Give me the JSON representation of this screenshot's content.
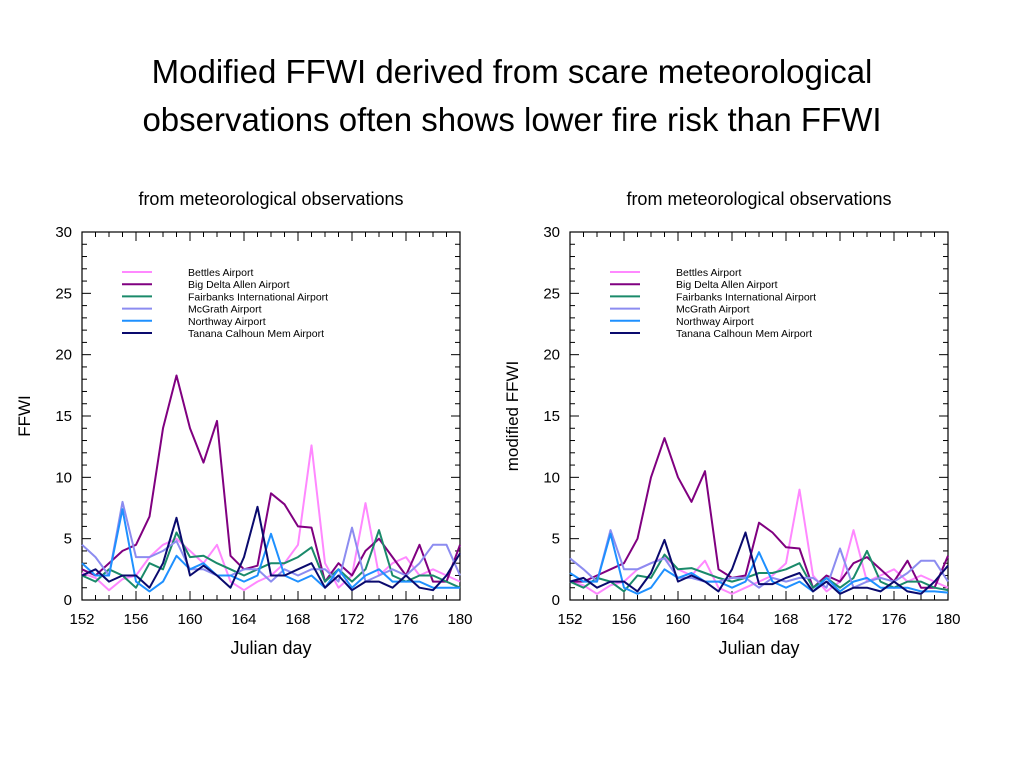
{
  "slide": {
    "title_line1": "Modified FFWI derived from scare meteorological",
    "title_line2": "observations often shows lower fire risk than FFWI"
  },
  "colors": {
    "Bettles Airport": "#ff88ff",
    "Big Delta Allen Airport": "#800080",
    "Fairbanks International Airport": "#1a8a6a",
    "McGrath Airport": "#8c8cf0",
    "Northway Airport": "#1e90ff",
    "Tanana Calhoun Mem Airport": "#0a0a6e"
  },
  "chart_data": [
    {
      "type": "line",
      "title": "from meteorological observations",
      "xlabel": "Julian day",
      "ylabel": "FFWI",
      "xlim": [
        152,
        180
      ],
      "ylim": [
        0,
        30
      ],
      "xticks": [
        152,
        156,
        160,
        164,
        168,
        172,
        176,
        180
      ],
      "yticks": [
        0,
        5,
        10,
        15,
        20,
        25,
        30
      ],
      "legend": "top-left",
      "grid": false,
      "x": [
        152,
        153,
        154,
        155,
        156,
        157,
        158,
        159,
        160,
        161,
        162,
        163,
        164,
        165,
        166,
        167,
        168,
        169,
        170,
        171,
        172,
        173,
        174,
        175,
        176,
        177,
        178,
        179,
        180
      ],
      "series": [
        {
          "name": "Bettles Airport",
          "values": [
            2.2,
            1.8,
            0.8,
            1.7,
            2.0,
            3.5,
            4.5,
            5.0,
            4.0,
            3.0,
            4.5,
            1.5,
            0.8,
            1.5,
            2.0,
            3.0,
            4.5,
            12.6,
            3.0,
            1.0,
            2.0,
            7.9,
            2.0,
            3.0,
            3.5,
            2.0,
            2.5,
            2.0,
            1.5
          ]
        },
        {
          "name": "Big Delta Allen Airport",
          "values": [
            2.5,
            2.0,
            3.0,
            4.0,
            4.5,
            6.8,
            14.0,
            18.3,
            14.0,
            11.2,
            14.6,
            3.6,
            2.5,
            2.8,
            8.7,
            7.8,
            6.0,
            5.9,
            1.5,
            3.0,
            2.0,
            4.0,
            5.0,
            3.5,
            2.0,
            4.5,
            1.5,
            1.5,
            4.5
          ]
        },
        {
          "name": "Fairbanks International Airport",
          "values": [
            2.0,
            1.5,
            2.5,
            2.0,
            1.0,
            3.0,
            2.5,
            5.5,
            3.5,
            3.6,
            3.0,
            2.5,
            2.0,
            2.5,
            3.0,
            3.0,
            3.5,
            4.3,
            1.5,
            2.5,
            1.5,
            2.5,
            5.7,
            2.0,
            1.5,
            2.0,
            2.0,
            1.5,
            1.0
          ]
        },
        {
          "name": "McGrath Airport",
          "values": [
            4.5,
            3.5,
            2.0,
            8.0,
            3.5,
            3.5,
            4.0,
            4.8,
            2.5,
            2.5,
            2.0,
            2.0,
            2.5,
            2.5,
            1.5,
            2.5,
            2.0,
            2.5,
            2.5,
            1.5,
            5.9,
            1.5,
            2.0,
            2.5,
            2.0,
            3.0,
            4.5,
            4.5,
            2.0
          ]
        },
        {
          "name": "Northway Airport",
          "values": [
            3.0,
            2.0,
            2.0,
            7.4,
            1.5,
            0.7,
            1.5,
            3.6,
            2.5,
            3.0,
            2.0,
            2.0,
            1.5,
            2.0,
            5.4,
            2.0,
            1.5,
            2.0,
            1.0,
            2.5,
            1.0,
            2.0,
            2.5,
            1.5,
            1.5,
            1.5,
            1.0,
            1.0,
            1.0
          ]
        },
        {
          "name": "Tanana Calhoun Mem Airport",
          "values": [
            2.0,
            2.5,
            1.5,
            2.0,
            2.0,
            1.0,
            3.0,
            6.7,
            2.0,
            2.8,
            2.0,
            1.0,
            3.5,
            7.6,
            2.0,
            2.0,
            2.5,
            3.0,
            1.0,
            2.0,
            0.8,
            1.5,
            1.5,
            1.0,
            2.0,
            1.0,
            0.8,
            2.0,
            3.8
          ]
        }
      ]
    },
    {
      "type": "line",
      "title": "from meteorological observations",
      "xlabel": "Julian day",
      "ylabel": "modified FFWI",
      "xlim": [
        152,
        180
      ],
      "ylim": [
        0,
        30
      ],
      "xticks": [
        152,
        156,
        160,
        164,
        168,
        172,
        176,
        180
      ],
      "yticks": [
        0,
        5,
        10,
        15,
        20,
        25,
        30
      ],
      "legend": "top-left",
      "grid": false,
      "x": [
        152,
        153,
        154,
        155,
        156,
        157,
        158,
        159,
        160,
        161,
        162,
        163,
        164,
        165,
        166,
        167,
        168,
        169,
        170,
        171,
        172,
        173,
        174,
        175,
        176,
        177,
        178,
        179,
        180
      ],
      "series": [
        {
          "name": "Bettles Airport",
          "values": [
            1.5,
            1.2,
            0.5,
            1.2,
            1.5,
            2.5,
            3.0,
            3.5,
            2.5,
            2.0,
            3.2,
            1.0,
            0.5,
            1.0,
            1.5,
            2.0,
            3.0,
            9.0,
            2.0,
            0.7,
            1.5,
            5.7,
            1.5,
            2.0,
            2.5,
            1.5,
            2.0,
            1.5,
            1.0
          ]
        },
        {
          "name": "Big Delta Allen Airport",
          "values": [
            1.5,
            1.5,
            2.0,
            2.5,
            3.0,
            5.0,
            10.0,
            13.2,
            10.0,
            8.0,
            10.5,
            2.5,
            1.8,
            2.0,
            6.3,
            5.5,
            4.3,
            4.2,
            1.0,
            2.0,
            1.5,
            3.0,
            3.5,
            2.5,
            1.5,
            3.2,
            1.0,
            1.0,
            3.6
          ]
        },
        {
          "name": "Fairbanks International Airport",
          "values": [
            1.5,
            1.0,
            1.8,
            1.5,
            0.7,
            2.0,
            1.8,
            3.7,
            2.5,
            2.6,
            2.2,
            1.8,
            1.5,
            1.8,
            2.2,
            2.2,
            2.5,
            3.0,
            1.0,
            1.8,
            1.0,
            1.8,
            4.0,
            1.5,
            1.0,
            1.5,
            1.5,
            1.0,
            0.8
          ]
        },
        {
          "name": "McGrath Airport",
          "values": [
            3.4,
            2.5,
            1.5,
            5.7,
            2.5,
            2.5,
            3.0,
            3.4,
            1.8,
            1.8,
            1.5,
            1.5,
            1.8,
            1.8,
            1.0,
            1.8,
            1.5,
            1.8,
            1.8,
            1.0,
            4.2,
            1.0,
            1.5,
            1.8,
            1.5,
            2.2,
            3.2,
            3.2,
            1.5
          ]
        },
        {
          "name": "Northway Airport",
          "values": [
            2.2,
            1.5,
            1.5,
            5.4,
            1.0,
            0.5,
            1.0,
            2.5,
            1.8,
            2.2,
            1.5,
            1.5,
            1.0,
            1.5,
            3.9,
            1.5,
            1.0,
            1.5,
            0.7,
            1.8,
            0.7,
            1.5,
            1.8,
            1.0,
            1.0,
            1.0,
            0.7,
            0.7,
            0.6
          ]
        },
        {
          "name": "Tanana Calhoun Mem Airport",
          "values": [
            1.5,
            1.8,
            1.0,
            1.5,
            1.5,
            0.7,
            2.2,
            4.9,
            1.5,
            2.0,
            1.5,
            0.7,
            2.5,
            5.5,
            1.3,
            1.3,
            1.8,
            2.2,
            0.7,
            1.5,
            0.5,
            1.0,
            1.0,
            0.7,
            1.5,
            0.7,
            0.5,
            1.5,
            2.8
          ]
        }
      ]
    }
  ]
}
